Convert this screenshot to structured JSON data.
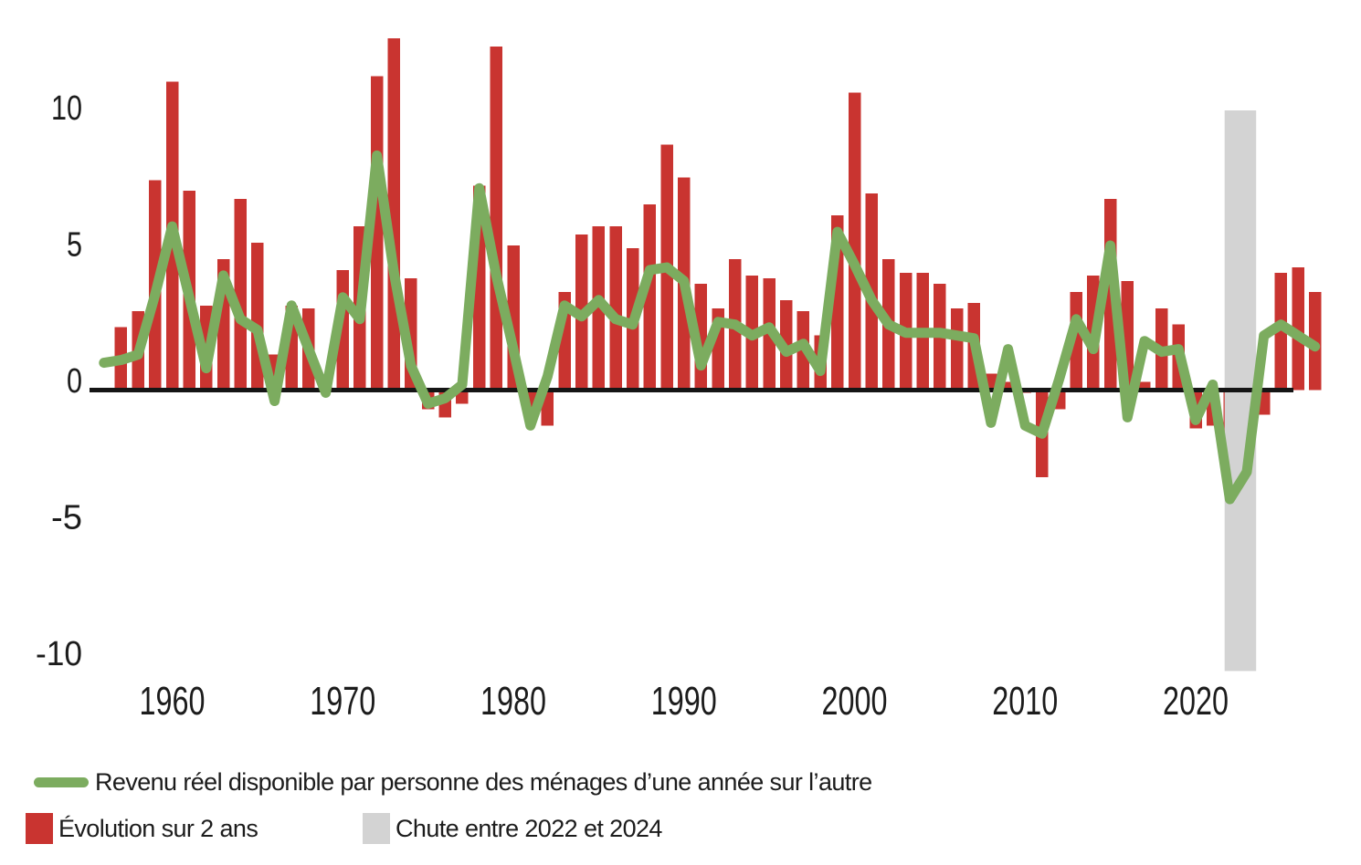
{
  "chart_data": {
    "type": "bar+line",
    "background": "#ffffff",
    "x_axis": {
      "ticks": [
        1960,
        1970,
        1980,
        1990,
        2000,
        2010,
        2020
      ]
    },
    "y_axis": {
      "ticks": [
        10,
        5,
        0,
        -5,
        -10
      ],
      "ylim": [
        -10.5,
        13.5
      ]
    },
    "series": [
      {
        "name": "Évolution sur 2 ans",
        "type": "bar",
        "color": "#c93430",
        "years": [
          1957,
          1958,
          1959,
          1960,
          1961,
          1962,
          1963,
          1964,
          1965,
          1966,
          1967,
          1968,
          1969,
          1970,
          1971,
          1972,
          1973,
          1974,
          1975,
          1976,
          1977,
          1978,
          1979,
          1980,
          1981,
          1982,
          1983,
          1984,
          1985,
          1986,
          1987,
          1988,
          1989,
          1990,
          1991,
          1992,
          1993,
          1994,
          1995,
          1996,
          1997,
          1998,
          1999,
          2000,
          2001,
          2002,
          2003,
          2004,
          2005,
          2006,
          2007,
          2008,
          2009,
          2010,
          2011,
          2012,
          2013,
          2014,
          2015,
          2016,
          2017,
          2018,
          2019,
          2020,
          2021,
          2022,
          2023,
          2024,
          2025,
          2026,
          2027
        ],
        "values": [
          2.3,
          2.9,
          7.7,
          11.3,
          7.3,
          3.1,
          4.8,
          7.0,
          5.4,
          1.3,
          3.1,
          3.0,
          0.5,
          4.4,
          6.0,
          11.5,
          12.9,
          4.1,
          -0.7,
          -1.0,
          -0.5,
          7.5,
          12.6,
          5.3,
          -0.9,
          -1.3,
          3.6,
          5.7,
          6.0,
          6.0,
          5.2,
          6.8,
          9.0,
          7.8,
          3.9,
          3.0,
          4.8,
          4.2,
          4.1,
          3.3,
          2.9,
          2.0,
          6.4,
          10.9,
          7.2,
          4.8,
          4.3,
          4.3,
          3.9,
          3.0,
          3.2,
          0.6,
          0.3,
          -0.1,
          -3.2,
          -0.7,
          3.6,
          4.2,
          7.0,
          4.0,
          0.3,
          3.0,
          2.4,
          -1.4,
          -1.3,
          -2.2,
          -3.3,
          -0.9,
          4.3,
          4.5,
          3.6
        ]
      },
      {
        "name": "Revenu réel disponible par personne des ménages d’une année sur l’autre",
        "type": "line",
        "color": "#7cac5f",
        "years": [
          1956,
          1957,
          1958,
          1959,
          1960,
          1961,
          1962,
          1963,
          1964,
          1965,
          1966,
          1967,
          1968,
          1969,
          1970,
          1971,
          1972,
          1973,
          1974,
          1975,
          1976,
          1977,
          1978,
          1979,
          1980,
          1981,
          1982,
          1983,
          1984,
          1985,
          1986,
          1987,
          1988,
          1989,
          1990,
          1991,
          1992,
          1993,
          1994,
          1995,
          1996,
          1997,
          1998,
          1999,
          2000,
          2001,
          2002,
          2003,
          2004,
          2005,
          2006,
          2007,
          2008,
          2009,
          2010,
          2011,
          2012,
          2013,
          2014,
          2015,
          2016,
          2017,
          2018,
          2019,
          2020,
          2021,
          2022,
          2023,
          2024,
          2025,
          2026,
          2027
        ],
        "values": [
          1.0,
          1.1,
          1.3,
          3.5,
          6.0,
          3.4,
          0.8,
          4.2,
          2.6,
          2.2,
          -0.4,
          3.1,
          1.5,
          -0.1,
          3.4,
          2.6,
          8.6,
          4.3,
          0.9,
          -0.5,
          -0.3,
          0.2,
          7.4,
          4.2,
          1.5,
          -1.3,
          0.5,
          3.1,
          2.7,
          3.3,
          2.6,
          2.4,
          4.4,
          4.5,
          4.0,
          0.9,
          2.5,
          2.4,
          2.0,
          2.3,
          1.4,
          1.7,
          0.7,
          5.8,
          4.6,
          3.3,
          2.4,
          2.1,
          2.1,
          2.1,
          2.0,
          1.9,
          -1.2,
          1.5,
          -1.3,
          -1.6,
          0.4,
          2.6,
          1.5,
          5.3,
          -1.0,
          1.8,
          1.4,
          1.5,
          -1.1,
          0.2,
          -4.0,
          -3.0,
          2.0,
          2.4,
          2.0,
          1.6
        ]
      }
    ],
    "band": {
      "label": "Chute entre 2022 et 2024",
      "color": "#d3d3d3",
      "x_from": 2021.7,
      "x_to": 2023.55,
      "y_from": -10.3,
      "y_to": 10.25
    },
    "axis_color": "#151515",
    "legend_position": "bottom-left",
    "grid": false
  },
  "legend": {
    "line_label": "Revenu réel disponible par personne des ménages d’une année sur l’autre",
    "bar_label": "Évolution sur 2 ans",
    "band_label": "Chute entre 2022 et 2024"
  }
}
